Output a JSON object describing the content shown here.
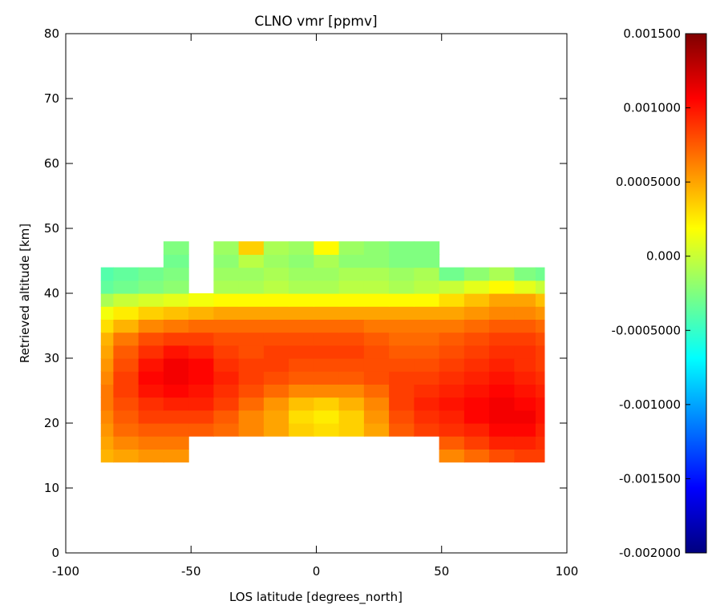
{
  "chart_data": {
    "type": "heatmap",
    "title": "CLNO vmr [ppmv]",
    "xlabel": "LOS latitude [degrees_north]",
    "ylabel": "Retrieved altitude [km]",
    "xlim": [
      -100,
      100
    ],
    "ylim": [
      0,
      80
    ],
    "x_ticks": [
      "-100",
      "-50",
      "0",
      "50",
      "100"
    ],
    "y_ticks": [
      "0",
      "10",
      "20",
      "30",
      "40",
      "50",
      "60",
      "70",
      "80"
    ],
    "grid": false,
    "colorbar": {
      "colormap": "jet",
      "range": [
        -0.002,
        0.0015
      ],
      "position": "right",
      "ticks": [
        {
          "value": 0.0015,
          "label": "0.001500"
        },
        {
          "value": 0.001,
          "label": "0.001000"
        },
        {
          "value": 0.0005,
          "label": "0.0005000"
        },
        {
          "value": 0.0,
          "label": "0.000"
        },
        {
          "value": -0.0005,
          "label": "-0.0005000"
        },
        {
          "value": -0.001,
          "label": "-0.001000"
        },
        {
          "value": -0.0015,
          "label": "-0.001500"
        },
        {
          "value": -0.002,
          "label": "-0.002000"
        }
      ]
    },
    "altitudes_km": [
      14,
      16,
      18,
      20,
      22,
      24,
      26,
      28,
      30,
      32,
      34,
      36,
      38,
      40,
      42,
      44,
      46
    ],
    "latitudes": [
      -86,
      -76,
      -66,
      -56,
      -46,
      -36,
      -26,
      -16,
      -6,
      4,
      14,
      24,
      34,
      44,
      54,
      64,
      74,
      84,
      91
    ],
    "profile_coverage": [
      {
        "lat_min": -86,
        "lat_max": -56,
        "alt_min": 14,
        "alt_max": 42
      },
      {
        "lat_min": -56,
        "lat_max": -48,
        "alt_min": 18,
        "alt_max": 46
      },
      {
        "lat_min": -48,
        "lat_max": -40,
        "alt_min": 18,
        "alt_max": 38
      },
      {
        "lat_min": -40,
        "lat_max": 46,
        "alt_min": 18,
        "alt_max": 46
      },
      {
        "lat_min": 46,
        "lat_max": 91,
        "alt_min": 14,
        "alt_max": 42
      }
    ],
    "values": [
      [
        0.00045,
        0.0005,
        0.00055,
        0.00055,
        null,
        null,
        null,
        null,
        null,
        null,
        null,
        null,
        null,
        null,
        0.0006,
        0.0007,
        0.0008,
        0.00085,
        0.00085
      ],
      [
        0.0005,
        0.0006,
        0.00065,
        0.00065,
        null,
        null,
        null,
        null,
        null,
        null,
        null,
        null,
        null,
        null,
        0.00075,
        0.00085,
        0.00095,
        0.00095,
        0.0009
      ],
      [
        0.00055,
        0.0007,
        0.00075,
        0.00075,
        0.00075,
        0.0007,
        0.0006,
        0.0005,
        0.00035,
        0.0003,
        0.00035,
        0.0005,
        0.00075,
        0.00085,
        0.0009,
        0.00095,
        0.00105,
        0.00105,
        0.00095
      ],
      [
        0.0006,
        0.00075,
        0.00085,
        0.00085,
        0.00085,
        0.00075,
        0.0006,
        0.0005,
        0.0003,
        0.00025,
        0.00035,
        0.00055,
        0.0008,
        0.0009,
        0.00095,
        0.00105,
        0.0011,
        0.0011,
        0.001
      ],
      [
        0.00065,
        0.0008,
        0.0009,
        0.00095,
        0.00095,
        0.00085,
        0.0007,
        0.00055,
        0.0004,
        0.00035,
        0.00045,
        0.0006,
        0.00085,
        0.00095,
        0.001,
        0.00105,
        0.0011,
        0.00105,
        0.001
      ],
      [
        0.00065,
        0.00085,
        0.001,
        0.00105,
        0.001,
        0.0009,
        0.0008,
        0.0007,
        0.0006,
        0.0006,
        0.0006,
        0.0007,
        0.00085,
        0.0009,
        0.00095,
        0.001,
        0.00105,
        0.001,
        0.00095
      ],
      [
        0.0006,
        0.00085,
        0.00105,
        0.0011,
        0.00105,
        0.00095,
        0.00085,
        0.0008,
        0.00075,
        0.00075,
        0.00075,
        0.0008,
        0.00085,
        0.00085,
        0.0009,
        0.00095,
        0.001,
        0.00095,
        0.0009
      ],
      [
        0.00055,
        0.0008,
        0.001,
        0.0011,
        0.00105,
        0.0009,
        0.00085,
        0.00085,
        0.0008,
        0.0008,
        0.0008,
        0.0008,
        0.0008,
        0.0008,
        0.00085,
        0.0009,
        0.00095,
        0.0009,
        0.00085
      ],
      [
        0.0005,
        0.00075,
        0.0009,
        0.001,
        0.00095,
        0.00085,
        0.0008,
        0.00085,
        0.00085,
        0.00085,
        0.00085,
        0.0008,
        0.00075,
        0.00075,
        0.0008,
        0.00085,
        0.0009,
        0.0009,
        0.00085
      ],
      [
        0.00045,
        0.00065,
        0.0008,
        0.00085,
        0.00085,
        0.0008,
        0.0008,
        0.0008,
        0.0008,
        0.0008,
        0.0008,
        0.00075,
        0.0007,
        0.0007,
        0.00075,
        0.0008,
        0.00085,
        0.00085,
        0.0008
      ],
      [
        0.0003,
        0.00045,
        0.0006,
        0.00065,
        0.0007,
        0.0007,
        0.0007,
        0.0007,
        0.0007,
        0.0007,
        0.0007,
        0.00065,
        0.00065,
        0.00065,
        0.00065,
        0.0007,
        0.00075,
        0.00075,
        0.0007
      ],
      [
        0.00015,
        0.00025,
        0.00035,
        0.0004,
        0.00045,
        0.0005,
        0.0005,
        0.0005,
        0.0005,
        0.0005,
        0.0005,
        0.0005,
        0.0005,
        0.0005,
        0.0005,
        0.00055,
        0.0006,
        0.0006,
        0.00055
      ],
      [
        -0.0001,
        0.0,
        5e-05,
        0.0001,
        0.00015,
        0.0002,
        0.0002,
        0.0002,
        0.0002,
        0.0002,
        0.0002,
        0.0002,
        0.0002,
        0.0002,
        0.0003,
        0.0004,
        0.0005,
        0.0005,
        0.0004
      ],
      [
        -0.00035,
        -0.0003,
        -0.00025,
        -0.0002,
        null,
        -0.0001,
        -0.0001,
        -5e-05,
        -0.0001,
        -0.0001,
        -5e-05,
        -5e-05,
        -0.0001,
        -5e-05,
        0.0,
        0.0001,
        0.0002,
        0.0001,
        0.0
      ],
      [
        -0.0004,
        -0.00035,
        -0.0003,
        -0.00025,
        null,
        -0.00015,
        -0.00015,
        -0.0001,
        -0.00015,
        -0.00015,
        -0.0001,
        -0.0001,
        -0.00015,
        -0.0001,
        -0.0003,
        -0.0002,
        -0.0001,
        -0.00025,
        -0.0003
      ],
      [
        null,
        null,
        null,
        -0.0003,
        null,
        -0.0002,
        -5e-05,
        -0.00015,
        -0.0002,
        -0.0001,
        -0.0002,
        -0.0002,
        -0.00025,
        -0.00025,
        null,
        null,
        null,
        null,
        null
      ],
      [
        null,
        null,
        null,
        -0.00025,
        null,
        -0.00015,
        0.00035,
        -0.0001,
        -0.00015,
        0.0002,
        -0.00015,
        -0.0002,
        -0.00025,
        -0.00025,
        null,
        null,
        null,
        null,
        null
      ]
    ]
  }
}
